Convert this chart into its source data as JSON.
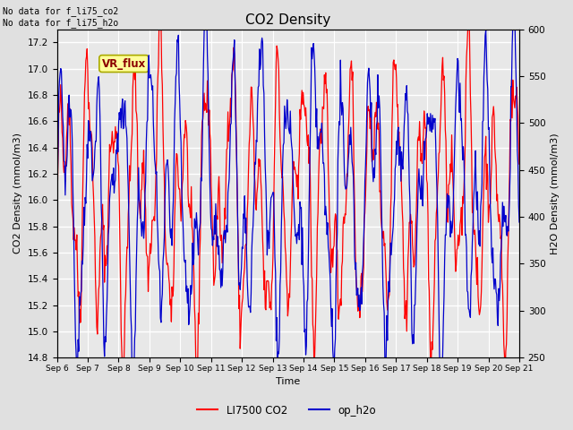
{
  "title": "CO2 Density",
  "xlabel": "Time",
  "ylabel_left": "CO2 Density (mmol/m3)",
  "ylabel_right": "H2O Density (mmol/m3)",
  "ylim_left": [
    14.8,
    17.3
  ],
  "ylim_right": [
    250,
    600
  ],
  "annotation_text": "No data for f_li75_co2\nNo data for f_li75_h2o",
  "box_label": "VR_flux",
  "legend": [
    "LI7500 CO2",
    "op_h2o"
  ],
  "co2_color": "#FF0000",
  "h2o_color": "#0000CC",
  "bg_color": "#E0E0E0",
  "plot_bg_color": "#E8E8E8",
  "grid_color": "#FFFFFF",
  "xtick_labels": [
    "Sep 6",
    "Sep 7",
    "Sep 8",
    "Sep 9",
    "Sep 10",
    "Sep 11",
    "Sep 12",
    "Sep 13",
    "Sep 14",
    "Sep 15",
    "Sep 16",
    "Sep 17",
    "Sep 18",
    "Sep 19",
    "Sep 20",
    "Sep 21"
  ],
  "n_days": 15,
  "seed": 42
}
